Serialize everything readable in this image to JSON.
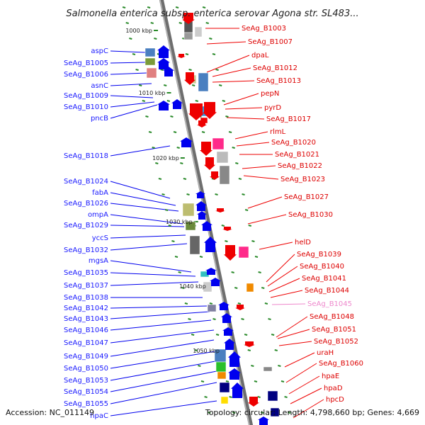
{
  "title": "Salmonella enterica subsp. enterica serovar Agona str. SL483...",
  "accession": "Accession: NC_011149",
  "summary": "Topology: circular; Length: 4,798,660 bp; Genes: 4,669",
  "colors": {
    "left_label": "#1a1aff",
    "right_label": "#dd0000",
    "faded_label": "#ee88cc",
    "forward_gene": "#0000ee",
    "reverse_gene": "#ee0000",
    "tick": "#2a8a2a"
  },
  "scale_labels": [
    "1000 kbp",
    "1010 kbp",
    "1020 kbp",
    "1030 kbp",
    "1040 kbp",
    "1050 kbp"
  ],
  "left_genes": [
    "aspC",
    "SeAg_B1005",
    "SeAg_B1006",
    "asnC",
    "SeAg_B1009",
    "SeAg_B1010",
    "pncB",
    "SeAg_B1018",
    "SeAg_B1024",
    "fabA",
    "SeAg_B1026",
    "ompA",
    "SeAg_B1029",
    "yccS",
    "SeAg_B1032",
    "mgsA",
    "SeAg_B1035",
    "SeAg_B1037",
    "SeAg_B1038",
    "SeAg_B1042",
    "SeAg_B1043",
    "SeAg_B1046",
    "SeAg_B1047",
    "SeAg_B1049",
    "SeAg_B1050",
    "SeAg_B1053",
    "SeAg_B1054",
    "SeAg_B1055",
    "hpaC"
  ],
  "right_genes": [
    "SeAg_B1003",
    "SeAg_B1007",
    "dpaL",
    "SeAg_B1012",
    "SeAg_B1013",
    "pepN",
    "pyrD",
    "SeAg_B1017",
    "rlmL",
    "SeAg_B1020",
    "SeAg_B1021",
    "SeAg_B1022",
    "SeAg_B1023",
    "SeAg_B1027",
    "SeAg_B1030",
    "helD",
    "SeAg_B1039",
    "SeAg_B1040",
    "SeAg_B1041",
    "SeAg_B1044",
    "SeAg_B1045",
    "SeAg_B1048",
    "SeAg_B1051",
    "SeAg_B1052",
    "uraH",
    "SeAg_B1060",
    "hpaE",
    "hpaD",
    "hpcD"
  ],
  "faded_right_gene": "SeAg_B1045"
}
